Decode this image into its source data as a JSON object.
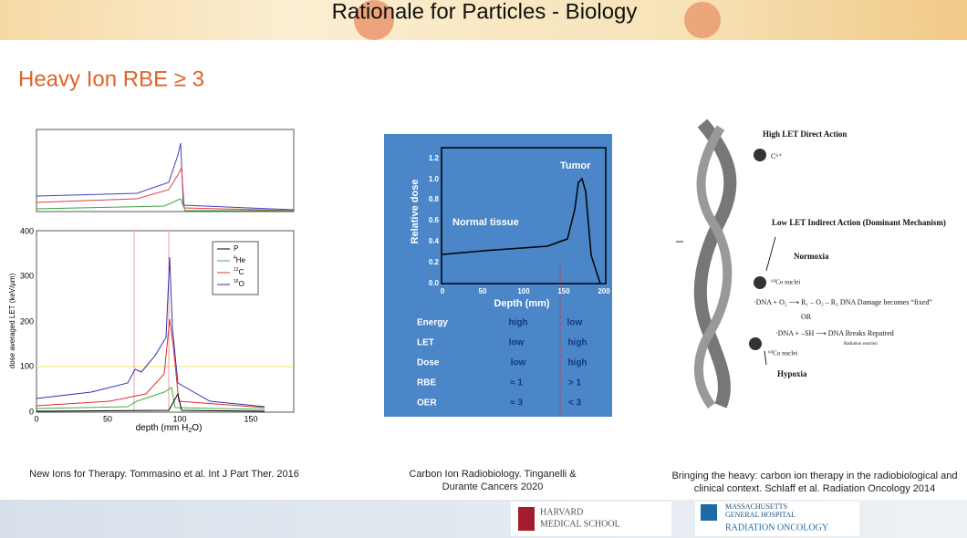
{
  "header": {
    "title": "Rationale for Particles - Biology"
  },
  "heading": "Heavy Ion RBE ≥ 3",
  "figures": [
    {
      "caption": "New Ions for Therapy. Tommasino et al. Int J Part Ther. 2016",
      "y_label": "dose averaged LET (keV/µm)",
      "x_label": {
        "before": "depth (mm H",
        "sub": "2",
        "after": "O)"
      },
      "y_ticks": [
        "0",
        "100",
        "200",
        "300",
        "400"
      ],
      "x_ticks": [
        "0",
        "50",
        "100",
        "150"
      ],
      "legend": [
        {
          "sup": "",
          "label": "P"
        },
        {
          "sup": "4",
          "label": "He"
        },
        {
          "sup": "12",
          "label": "C"
        },
        {
          "sup": "16",
          "label": "O"
        }
      ]
    },
    {
      "caption": "Carbon Ion Radiobiology. Tinganelli & Durante Cancers 2020",
      "y_label": "Relative dose",
      "x_label": "Depth (mm)",
      "tumor": "Tumor",
      "normal": "Normal tissue",
      "y_ticks": [
        "0.0",
        "0.2",
        "0.4",
        "0.6",
        "0.8",
        "1.0",
        "1.2"
      ],
      "x_ticks": [
        "0",
        "50",
        "100",
        "150",
        "200"
      ],
      "table": [
        [
          "Energy",
          "high",
          "low"
        ],
        [
          "LET",
          "low",
          "high"
        ],
        [
          "Dose",
          "low",
          "high"
        ],
        [
          "RBE",
          "≈ 1",
          "> 1"
        ],
        [
          "OER",
          "≈ 3",
          "< 3"
        ]
      ]
    },
    {
      "caption": "Bringing the heavy: carbon ion therapy in the radiobiological and clinical context. Schlaff et al. Radiation Oncology 2014",
      "high_let": "High LET Direct Action",
      "ion": "C⁶⁺",
      "low_let": "Low LET Indirect Action (Dominant Mechanism)",
      "normoxia": "Normoxia",
      "co1": "⁶⁰Co nuclei",
      "reaction1": "·DNA + O₂ ⟶ R₁ – O₂ – R₂   DNA Damage becomes “fixed”",
      "or": "OR",
      "reaction2": "·DNA + –SH ⟶ DNA Breaks Repaired",
      "radiation": "Radiation reaction",
      "co2": "⁶⁰Co nuclei",
      "hypoxia": "Hypoxia"
    }
  ],
  "footer": {
    "harvard": [
      "HARVARD",
      "MEDICAL SCHOOL"
    ],
    "mgh": [
      "MASSACHUSETTS",
      "GENERAL HOSPITAL"
    ],
    "radonc": "RADIATION ONCOLOGY"
  }
}
